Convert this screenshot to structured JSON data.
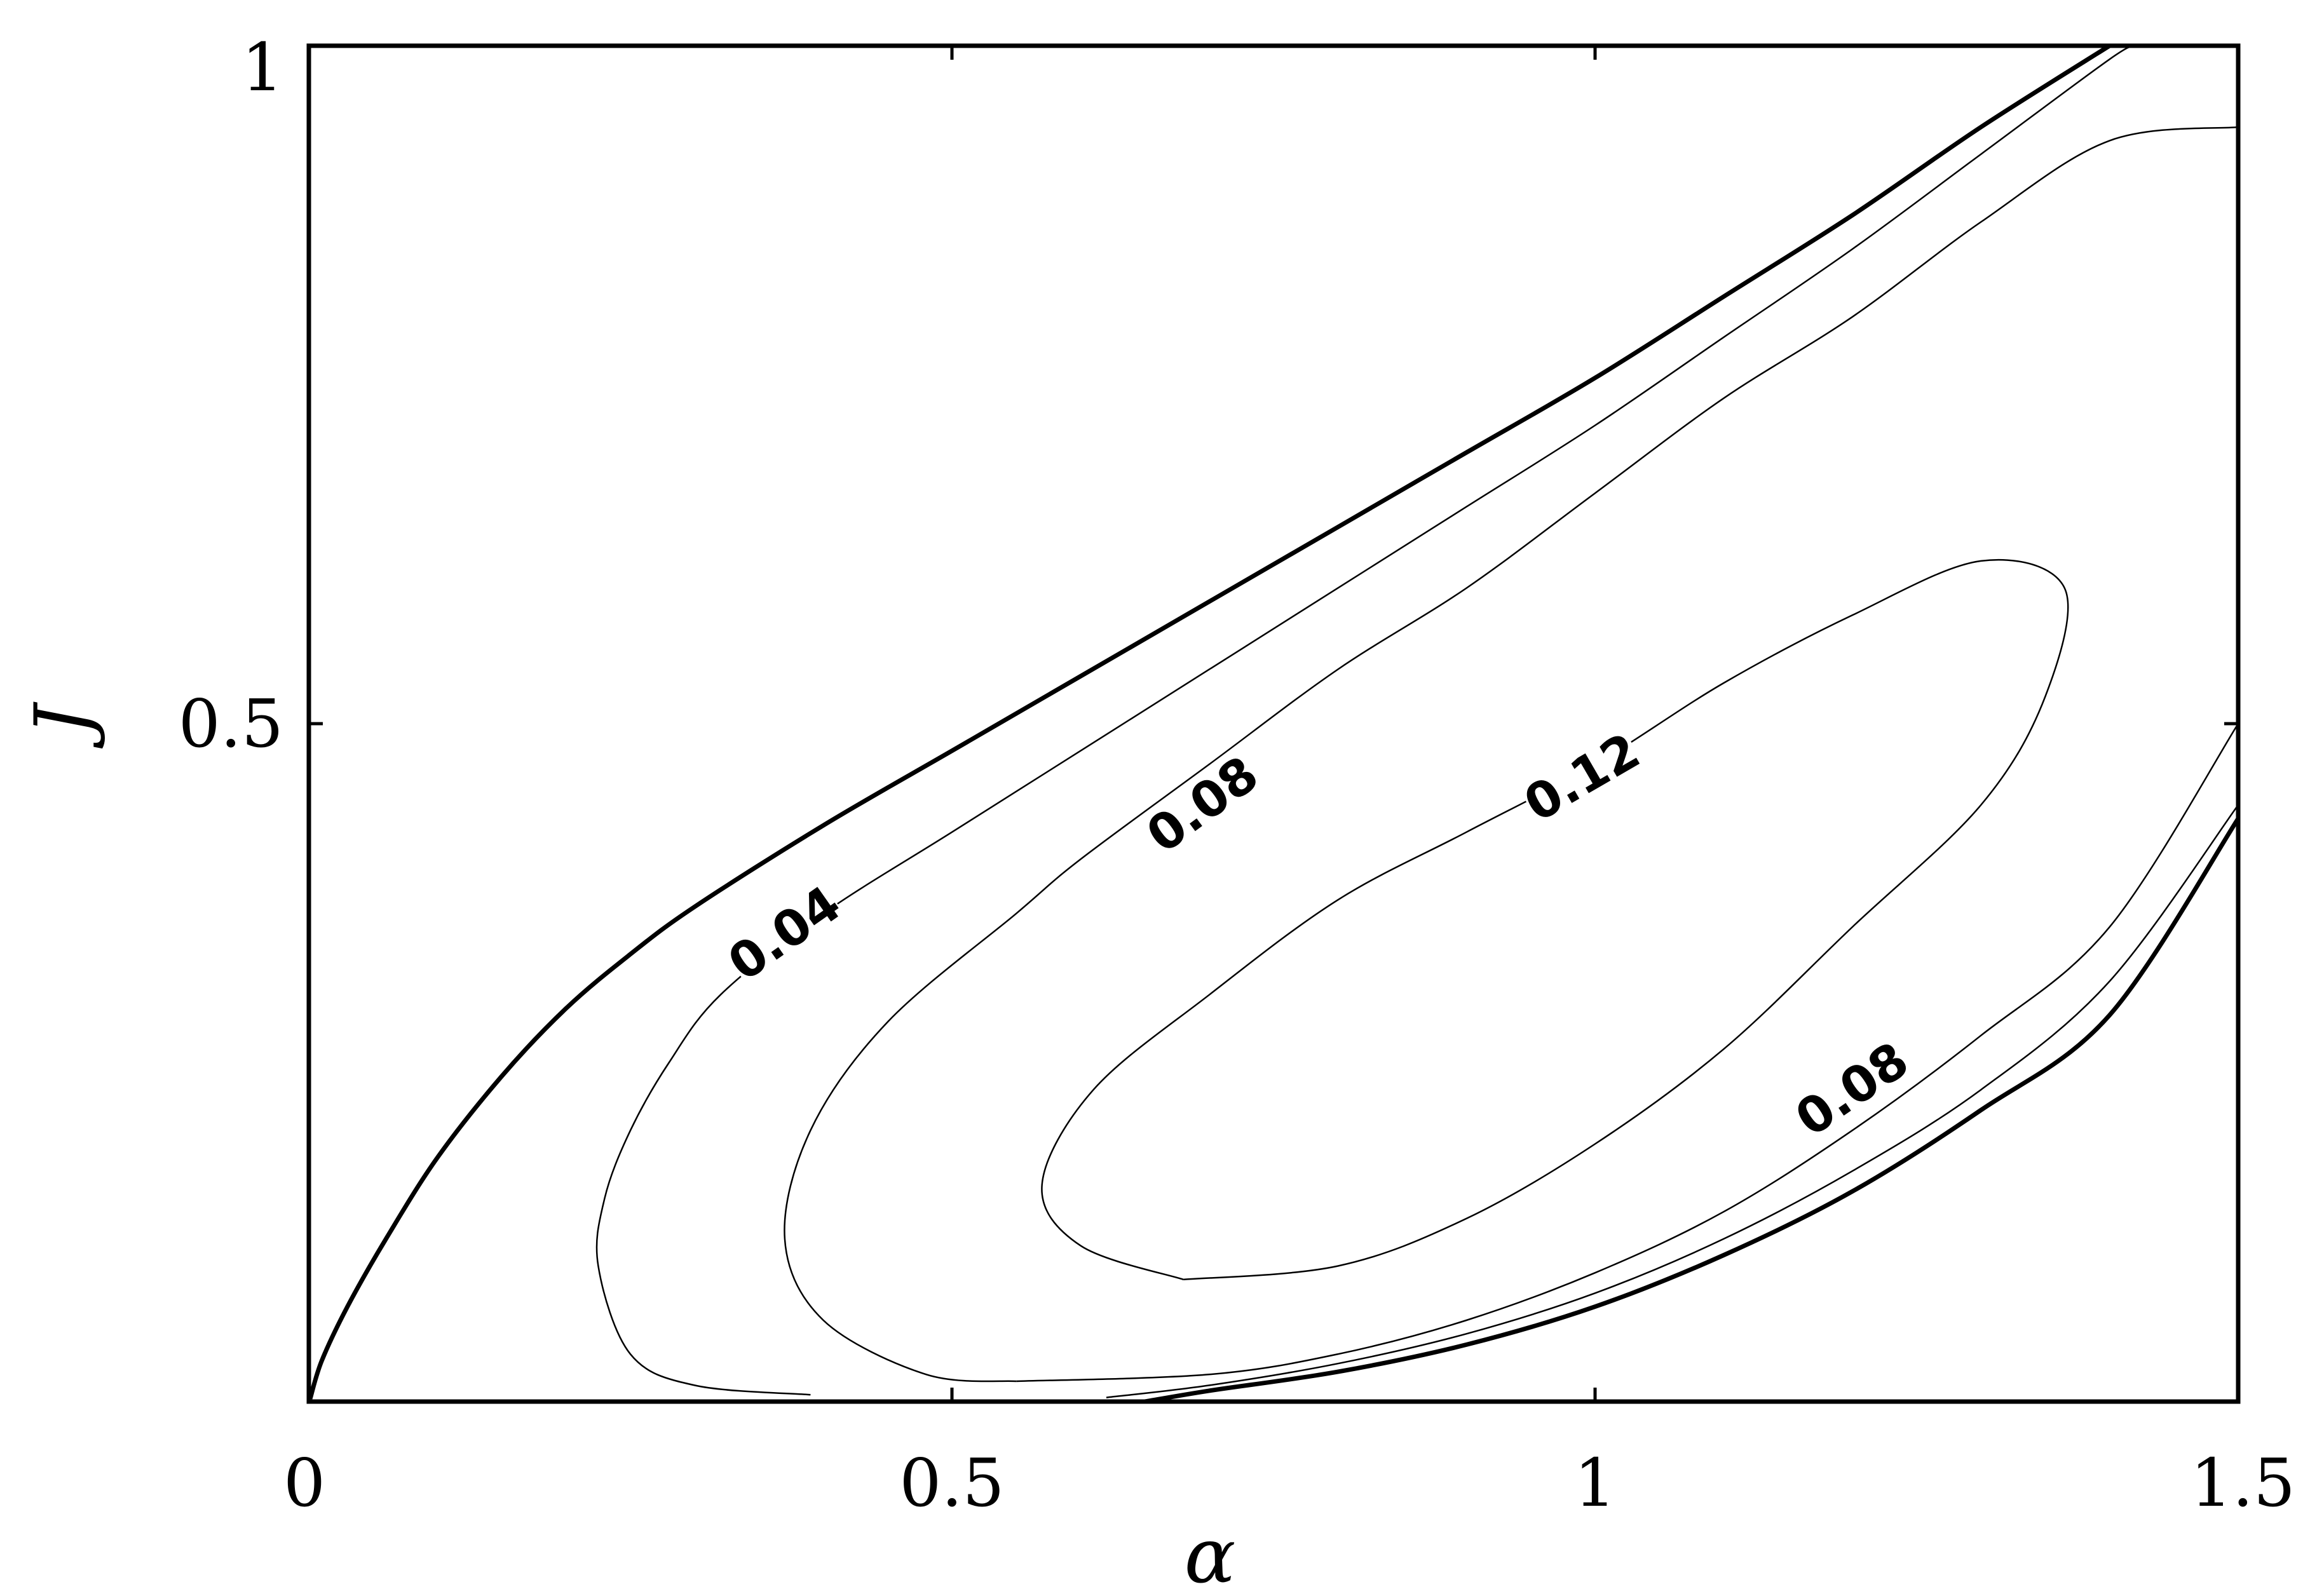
{
  "chart_data": {
    "type": "contour",
    "xlabel": "α",
    "ylabel": "J",
    "xlim": [
      0,
      1.5
    ],
    "ylim": [
      0,
      1
    ],
    "xticks": [
      {
        "value": 0,
        "label": "0"
      },
      {
        "value": 0.5,
        "label": "0.5"
      },
      {
        "value": 1,
        "label": "1"
      },
      {
        "value": 1.5,
        "label": "1.5"
      }
    ],
    "yticks": [
      {
        "value": 0.5,
        "label": "0.5"
      },
      {
        "value": 1,
        "label": "1"
      }
    ],
    "grid": false,
    "contours": [
      {
        "level": 0,
        "style": "thick",
        "points": [
          [
            0.001,
            0.002
          ],
          [
            0.01,
            0.03
          ],
          [
            0.03,
            0.07
          ],
          [
            0.06,
            0.12
          ],
          [
            0.1,
            0.18
          ],
          [
            0.15,
            0.24
          ],
          [
            0.2,
            0.29
          ],
          [
            0.25,
            0.33
          ],
          [
            0.3,
            0.365
          ],
          [
            0.4,
            0.425
          ],
          [
            0.5,
            0.48
          ],
          [
            0.6,
            0.535
          ],
          [
            0.7,
            0.59
          ],
          [
            0.8,
            0.645
          ],
          [
            0.9,
            0.7
          ],
          [
            1.0,
            0.755
          ],
          [
            1.1,
            0.815
          ],
          [
            1.2,
            0.875
          ],
          [
            1.3,
            0.94
          ],
          [
            1.4,
            1.0
          ]
        ]
      },
      {
        "level": 0,
        "style": "thick",
        "points": [
          [
            0.65,
            0.0
          ],
          [
            0.7,
            0.008
          ],
          [
            0.8,
            0.022
          ],
          [
            0.9,
            0.042
          ],
          [
            1.0,
            0.07
          ],
          [
            1.1,
            0.108
          ],
          [
            1.2,
            0.155
          ],
          [
            1.3,
            0.215
          ],
          [
            1.4,
            0.285
          ],
          [
            1.5,
            0.43
          ]
        ]
      },
      {
        "level": 0.04,
        "style": "thin",
        "label": "0.04",
        "points": [
          [
            0.39,
            0.005
          ],
          [
            0.3,
            0.012
          ],
          [
            0.25,
            0.035
          ],
          [
            0.225,
            0.1
          ],
          [
            0.23,
            0.15
          ],
          [
            0.25,
            0.2
          ],
          [
            0.28,
            0.25
          ],
          [
            0.32,
            0.3
          ],
          [
            0.4,
            0.36
          ],
          [
            0.5,
            0.42
          ],
          [
            0.6,
            0.48
          ],
          [
            0.7,
            0.54
          ],
          [
            0.8,
            0.6
          ],
          [
            0.9,
            0.66
          ],
          [
            1.0,
            0.72
          ],
          [
            1.1,
            0.785
          ],
          [
            1.2,
            0.85
          ],
          [
            1.3,
            0.92
          ],
          [
            1.4,
            0.99
          ],
          [
            1.42,
            1.0
          ]
        ]
      },
      {
        "level": 0.04,
        "style": "thin",
        "points": [
          [
            0.62,
            0.003
          ],
          [
            0.7,
            0.012
          ],
          [
            0.8,
            0.028
          ],
          [
            0.9,
            0.05
          ],
          [
            1.0,
            0.08
          ],
          [
            1.1,
            0.12
          ],
          [
            1.2,
            0.17
          ],
          [
            1.3,
            0.23
          ],
          [
            1.4,
            0.31
          ],
          [
            1.5,
            0.44
          ]
        ]
      },
      {
        "level": 0.08,
        "style": "thin",
        "label": "0.08",
        "points": [
          [
            0.55,
            0.015
          ],
          [
            0.48,
            0.02
          ],
          [
            0.4,
            0.06
          ],
          [
            0.37,
            0.12
          ],
          [
            0.39,
            0.2
          ],
          [
            0.45,
            0.28
          ],
          [
            0.55,
            0.36
          ],
          [
            0.6,
            0.4
          ],
          [
            0.7,
            0.47
          ],
          [
            0.8,
            0.54
          ],
          [
            0.9,
            0.6
          ],
          [
            1.0,
            0.67
          ],
          [
            1.1,
            0.74
          ],
          [
            1.2,
            0.8
          ],
          [
            1.3,
            0.87
          ],
          [
            1.4,
            0.93
          ],
          [
            1.5,
            0.94
          ]
        ]
      },
      {
        "level": 0.08,
        "style": "thin",
        "label": "0.08",
        "points": [
          [
            0.55,
            0.015
          ],
          [
            0.7,
            0.02
          ],
          [
            0.8,
            0.035
          ],
          [
            0.9,
            0.06
          ],
          [
            1.0,
            0.095
          ],
          [
            1.1,
            0.14
          ],
          [
            1.2,
            0.2
          ],
          [
            1.3,
            0.27
          ],
          [
            1.4,
            0.35
          ],
          [
            1.5,
            0.5
          ]
        ]
      },
      {
        "level": 0.12,
        "style": "thin",
        "label": "0.12",
        "points": [
          [
            0.68,
            0.09
          ],
          [
            0.6,
            0.115
          ],
          [
            0.57,
            0.16
          ],
          [
            0.61,
            0.23
          ],
          [
            0.7,
            0.3
          ],
          [
            0.8,
            0.37
          ],
          [
            0.9,
            0.42
          ],
          [
            1.0,
            0.47
          ],
          [
            1.1,
            0.53
          ],
          [
            1.2,
            0.58
          ],
          [
            1.3,
            0.62
          ],
          [
            1.365,
            0.6
          ],
          [
            1.35,
            0.52
          ],
          [
            1.3,
            0.44
          ],
          [
            1.2,
            0.35
          ],
          [
            1.1,
            0.26
          ],
          [
            1.0,
            0.19
          ],
          [
            0.9,
            0.135
          ],
          [
            0.8,
            0.1
          ],
          [
            0.68,
            0.09
          ]
        ]
      }
    ]
  }
}
